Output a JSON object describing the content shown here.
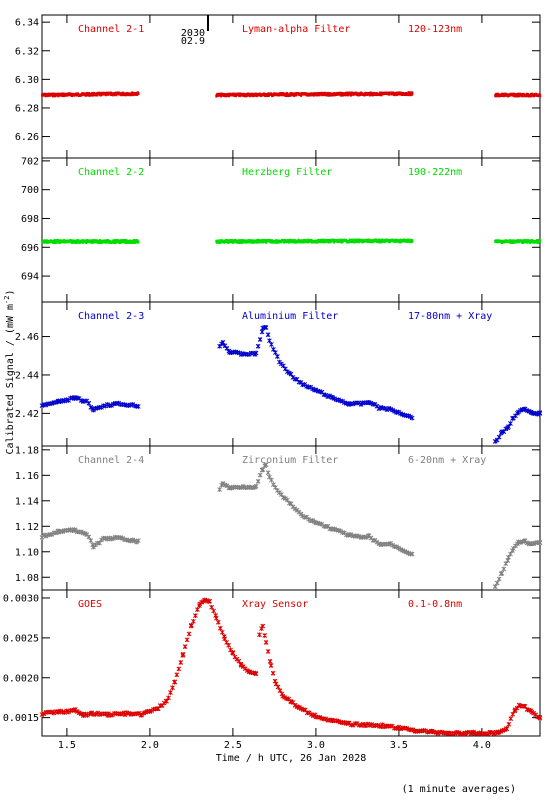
{
  "footnote": "(1 minute averages)",
  "annotation": {
    "label_top": "2030",
    "label_bottom": "02.9",
    "x": 2.35
  },
  "chart_data": {
    "type": "scatter",
    "shared_x": {
      "label": "Time / h UTC, 26 Jan 2028",
      "range": [
        1.35,
        4.35
      ],
      "ticks": [
        1.5,
        2.0,
        2.5,
        3.0,
        3.5,
        4.0
      ],
      "tick_labels": [
        "1.5",
        "2.0",
        "2.5",
        "3.0",
        "3.5",
        "4.0"
      ]
    },
    "y_axis_label": "Calibrated Signal / (mW m^-2)",
    "grid": false,
    "panels": [
      {
        "channel": "Channel 2-1",
        "filter": "Lyman-alpha Filter",
        "band": "120-123nm",
        "color": "#dd0000",
        "ylim": [
          6.245,
          6.345
        ],
        "yticks": [
          6.26,
          6.28,
          6.3,
          6.32,
          6.34
        ],
        "ytick_labels": [
          "6.26",
          "6.28",
          "6.30",
          "6.32",
          "6.34"
        ],
        "segments": [
          {
            "x": [
              1.35,
              1.93
            ],
            "y": [
              6.289,
              6.29
            ]
          },
          {
            "x": [
              2.4,
              3.58
            ],
            "y": [
              6.289,
              6.29
            ]
          },
          {
            "x": [
              4.08,
              4.35
            ],
            "y": [
              6.289,
              6.289
            ]
          }
        ]
      },
      {
        "channel": "Channel 2-2",
        "filter": "Herzberg Filter",
        "band": "190-222nm",
        "color": "#00dd00",
        "ylim": [
          692.2,
          702.2
        ],
        "yticks": [
          694,
          696,
          698,
          700,
          702
        ],
        "ytick_labels": [
          "694",
          "696",
          "698",
          "700",
          "702"
        ],
        "segments": [
          {
            "x": [
              1.35,
              1.93
            ],
            "y": [
              696.4,
              696.4
            ]
          },
          {
            "x": [
              2.4,
              3.58
            ],
            "y": [
              696.4,
              696.45
            ]
          },
          {
            "x": [
              4.08,
              4.35
            ],
            "y": [
              696.4,
              696.4
            ]
          }
        ]
      },
      {
        "channel": "Channel 2-3",
        "filter": "Aluminium Filter",
        "band": "17-80nm + Xray",
        "color": "#0000cc",
        "ylim": [
          2.403,
          2.478
        ],
        "yticks": [
          2.42,
          2.44,
          2.46
        ],
        "ytick_labels": [
          "2.42",
          "2.44",
          "2.46"
        ],
        "series": [
          {
            "x": [
              1.35,
              1.45,
              1.55,
              1.62,
              1.66,
              1.72,
              1.8,
              1.93
            ],
            "y": [
              2.424,
              2.426,
              2.428,
              2.426,
              2.422,
              2.424,
              2.425,
              2.424
            ]
          },
          {
            "x": [
              2.42,
              2.44,
              2.48,
              2.55,
              2.64,
              2.68,
              2.7,
              2.72,
              2.78,
              2.85,
              2.92,
              3.0,
              3.1,
              3.2,
              3.28,
              3.32,
              3.38,
              3.45,
              3.58
            ],
            "y": [
              2.455,
              2.457,
              2.452,
              2.451,
              2.451,
              2.464,
              2.465,
              2.458,
              2.447,
              2.44,
              2.435,
              2.432,
              2.428,
              2.425,
              2.425,
              2.426,
              2.423,
              2.422,
              2.418
            ]
          },
          {
            "x": [
              4.08,
              4.12,
              4.16,
              4.19,
              4.22,
              4.26,
              4.3,
              4.35
            ],
            "y": [
              2.405,
              2.41,
              2.413,
              2.418,
              2.421,
              2.422,
              2.42,
              2.42
            ]
          }
        ]
      },
      {
        "channel": "Channel 2-4",
        "filter": "Zirconium Filter",
        "band": "6-20nm + Xray",
        "color": "#808080",
        "ylim": [
          1.07,
          1.183
        ],
        "yticks": [
          1.08,
          1.1,
          1.12,
          1.14,
          1.16,
          1.18
        ],
        "ytick_labels": [
          "1.08",
          "1.10",
          "1.12",
          "1.14",
          "1.16",
          "1.18"
        ],
        "series": [
          {
            "x": [
              1.35,
              1.45,
              1.55,
              1.62,
              1.66,
              1.72,
              1.8,
              1.93
            ],
            "y": [
              1.112,
              1.116,
              1.117,
              1.114,
              1.104,
              1.11,
              1.111,
              1.108
            ]
          },
          {
            "x": [
              2.42,
              2.44,
              2.48,
              2.55,
              2.64,
              2.68,
              2.7,
              2.72,
              2.78,
              2.85,
              2.92,
              3.0,
              3.1,
              3.2,
              3.28,
              3.32,
              3.38,
              3.45,
              3.58
            ],
            "y": [
              1.149,
              1.154,
              1.15,
              1.151,
              1.151,
              1.165,
              1.168,
              1.158,
              1.146,
              1.137,
              1.128,
              1.123,
              1.118,
              1.113,
              1.111,
              1.112,
              1.106,
              1.106,
              1.098
            ]
          },
          {
            "x": [
              4.08,
              4.12,
              4.16,
              4.19,
              4.22,
              4.26,
              4.3,
              4.35
            ],
            "y": [
              1.073,
              1.083,
              1.095,
              1.103,
              1.107,
              1.108,
              1.106,
              1.107
            ]
          }
        ]
      },
      {
        "channel": "GOES",
        "filter": "Xray Sensor",
        "band": "0.1-0.8nm",
        "color": "#dd0000",
        "ylim": [
          0.00127,
          0.0031
        ],
        "yticks": [
          0.0015,
          0.002,
          0.0025,
          0.003
        ],
        "ytick_labels": [
          "0.0015",
          "0.0020",
          "0.0025",
          "0.0030"
        ],
        "series": [
          {
            "x": [
              1.35,
              1.45,
              1.55,
              1.6,
              1.65,
              1.75,
              1.85,
              1.95,
              2.05,
              2.1,
              2.15,
              2.2,
              2.25,
              2.3,
              2.33,
              2.36,
              2.4,
              2.45,
              2.5,
              2.55,
              2.6,
              2.64
            ],
            "y": [
              0.00155,
              0.00157,
              0.00159,
              0.00153,
              0.00155,
              0.00154,
              0.00155,
              0.00154,
              0.00162,
              0.0017,
              0.00195,
              0.0023,
              0.00265,
              0.00292,
              0.00298,
              0.00295,
              0.00275,
              0.0025,
              0.0023,
              0.00216,
              0.00208,
              0.00205
            ]
          },
          {
            "x": [
              2.66,
              2.68,
              2.7,
              2.73,
              2.76,
              2.8,
              2.85,
              2.9,
              3.0,
              3.1,
              3.2,
              3.3,
              3.4,
              3.5,
              3.6,
              3.7,
              3.8,
              3.9,
              3.95,
              4.0,
              4.05,
              4.1,
              4.15,
              4.2,
              4.23,
              4.26,
              4.3,
              4.35
            ],
            "y": [
              0.00255,
              0.00265,
              0.00245,
              0.00215,
              0.00192,
              0.00178,
              0.0017,
              0.00162,
              0.00152,
              0.00146,
              0.00142,
              0.00141,
              0.0014,
              0.00137,
              0.00134,
              0.00132,
              0.00131,
              0.0013,
              0.00131,
              0.0013,
              0.00131,
              0.00131,
              0.00137,
              0.0016,
              0.00166,
              0.00163,
              0.00157,
              0.0015
            ]
          }
        ]
      }
    ]
  }
}
